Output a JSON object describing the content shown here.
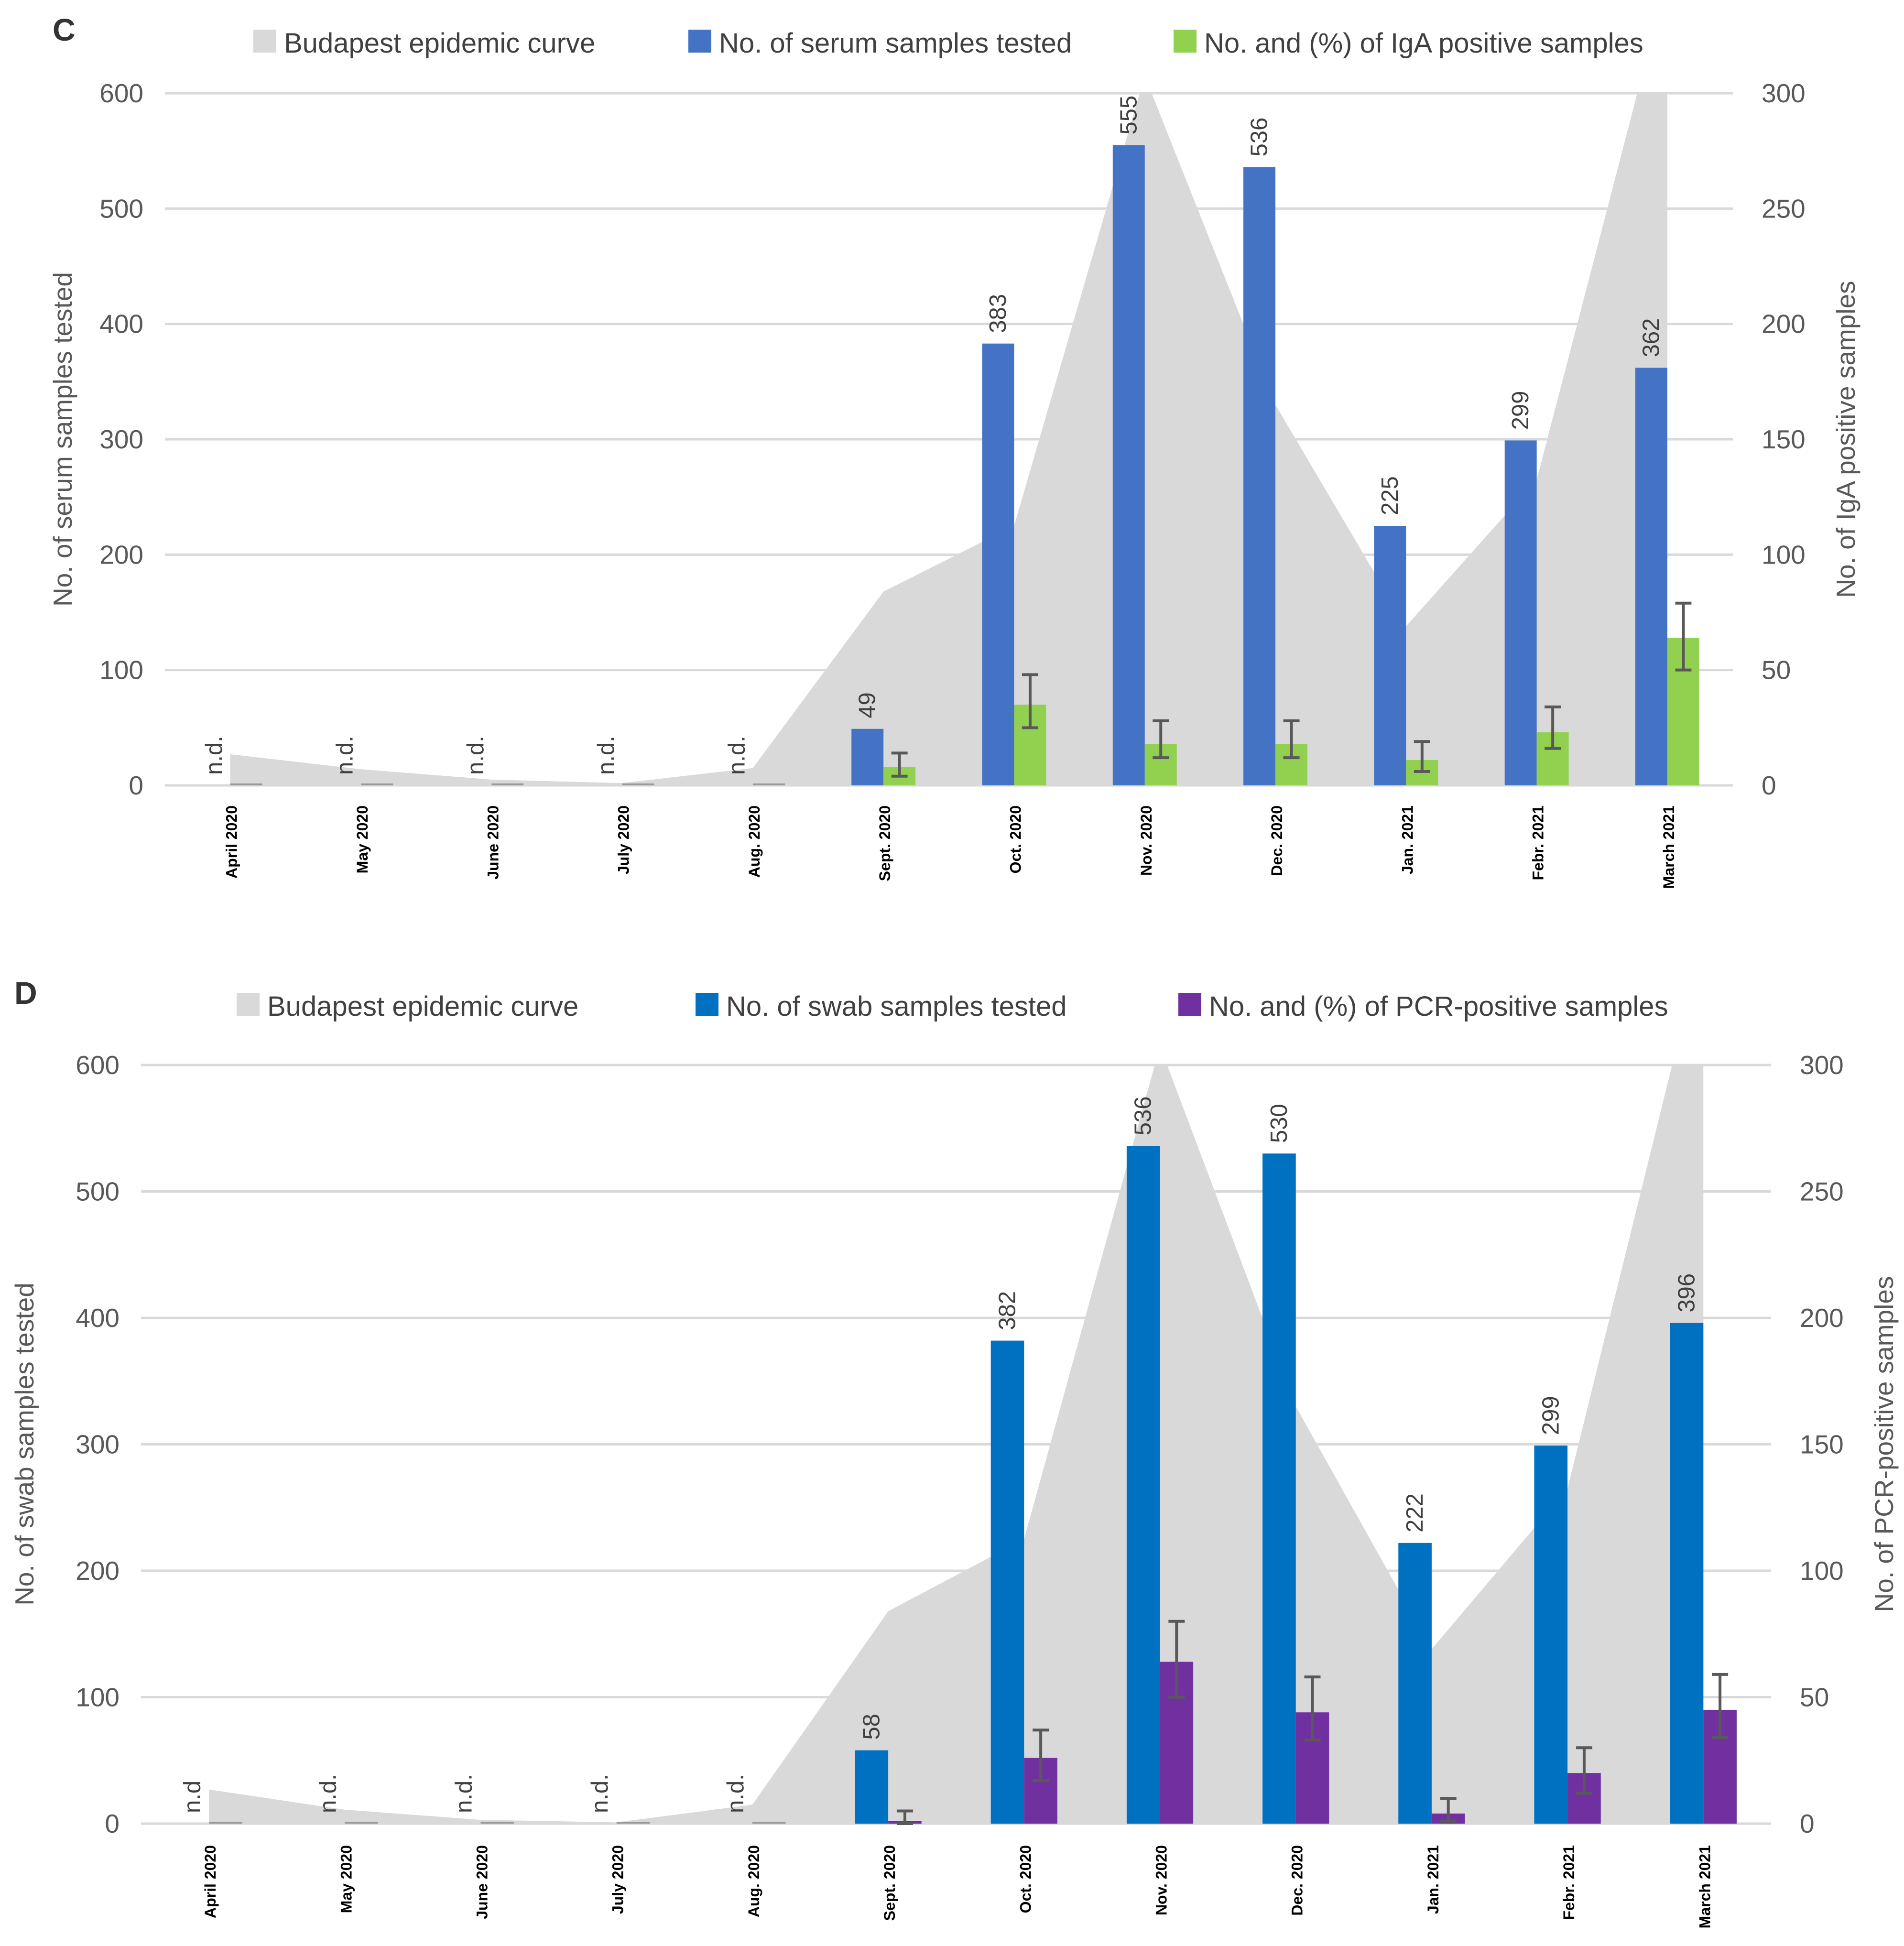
{
  "chart_data": [
    {
      "type": "bar",
      "panel": "C",
      "legend": [
        {
          "label": "Budapest epidemic curve",
          "color": "#d9d9d9"
        },
        {
          "label": "No. of serum samples tested",
          "color": "#4472c4"
        },
        {
          "label": "No. and (%) of IgA positive samples",
          "color": "#92d050"
        }
      ],
      "categories": [
        "April 2020",
        "May 2020",
        "June 2020",
        "July 2020",
        "Aug. 2020",
        "Sept. 2020",
        "Oct. 2020",
        "Nov. 2020",
        "Dec. 2020",
        "Jan. 2021",
        "Febr. 2021",
        "March 2021"
      ],
      "ylabel": "No. of serum samples tested",
      "y2label": "No. of IgA positive samples",
      "ylim": [
        0,
        600
      ],
      "y2lim": [
        0,
        300
      ],
      "yticks": [
        "0",
        "100",
        "200",
        "300",
        "400",
        "500",
        "600"
      ],
      "y2ticks": [
        "0",
        "50",
        "100",
        "150",
        "200",
        "250",
        "300"
      ],
      "epidemic_curve": [
        27,
        14,
        5,
        2,
        15,
        168,
        225,
        615,
        330,
        138,
        265,
        700
      ],
      "series": [
        {
          "name": "No. of serum samples tested",
          "color": "#4472c4",
          "axis": "left",
          "values": [
            0,
            0,
            0,
            0,
            0,
            49,
            383,
            555,
            536,
            225,
            299,
            362
          ],
          "labels": [
            "n.d.",
            "n.d.",
            "n.d.",
            "n.d.",
            "n.d.",
            "49",
            "383",
            "555",
            "536",
            "225",
            "299",
            "362"
          ]
        },
        {
          "name": "No. and (%) of IgA positive samples",
          "color": "#92d050",
          "axis": "right",
          "values": [
            0,
            0,
            0,
            0,
            0,
            8,
            35,
            18,
            18,
            11,
            23,
            64
          ],
          "error_low": [
            0,
            0,
            0,
            0,
            0,
            4,
            25,
            12,
            12,
            6,
            16,
            50
          ],
          "error_high": [
            0,
            0,
            0,
            0,
            0,
            14,
            48,
            28,
            28,
            19,
            34,
            79
          ]
        }
      ]
    },
    {
      "type": "bar",
      "panel": "D",
      "legend": [
        {
          "label": "Budapest epidemic curve",
          "color": "#d9d9d9"
        },
        {
          "label": "No. of swab samples tested",
          "color": "#0070c0"
        },
        {
          "label": "No. and (%) of PCR-positive samples",
          "color": "#7030a0"
        }
      ],
      "categories": [
        "April 2020",
        "May 2020",
        "June 2020",
        "July 2020",
        "Aug. 2020",
        "Sept. 2020",
        "Oct. 2020",
        "Nov. 2020",
        "Dec. 2020",
        "Jan. 2021",
        "Febr. 2021",
        "March 2021"
      ],
      "ylabel": "No. of swab samples tested",
      "y2label": "No. of PCR-positive samples",
      "ylim": [
        0,
        600
      ],
      "y2lim": [
        0,
        300
      ],
      "yticks": [
        "0",
        "100",
        "200",
        "300",
        "400",
        "500",
        "600"
      ],
      "y2ticks": [
        "0",
        "50",
        "100",
        "150",
        "200",
        "250",
        "300"
      ],
      "epidemic_curve": [
        27,
        11,
        3,
        1,
        15,
        168,
        225,
        615,
        330,
        138,
        265,
        700
      ],
      "series": [
        {
          "name": "No. of swab samples tested",
          "color": "#0070c0",
          "axis": "left",
          "values": [
            0,
            0,
            0,
            0,
            0,
            58,
            382,
            536,
            530,
            222,
            299,
            396
          ],
          "labels": [
            "n.d",
            "n.d.",
            "n.d.",
            "n.d.",
            "n.d.",
            "58",
            "382",
            "536",
            "530",
            "222",
            "299",
            "396"
          ]
        },
        {
          "name": "No. and (%) of PCR-positive samples",
          "color": "#7030a0",
          "axis": "right",
          "values": [
            0,
            0,
            0,
            0,
            0,
            1,
            26,
            64,
            44,
            4,
            20,
            45
          ],
          "error_low": [
            0,
            0,
            0,
            0,
            0,
            0,
            17,
            50,
            33,
            1,
            12,
            34
          ],
          "error_high": [
            0,
            0,
            0,
            0,
            0,
            5,
            37,
            80,
            58,
            10,
            30,
            59
          ]
        }
      ]
    }
  ]
}
